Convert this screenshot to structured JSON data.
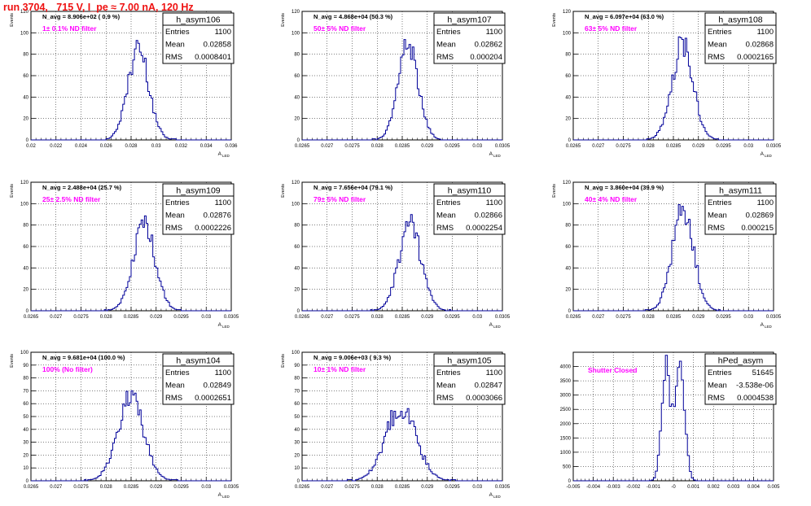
{
  "title": "run 3704,   715 V, I_pe ≈ 7.00 nA, 120 Hz",
  "colors": {
    "title": "#ee1111",
    "annotation": "#ff00ff",
    "histogram": "#000099",
    "frame": "#000000",
    "grid": "#000000"
  },
  "chart_data": [
    {
      "type": "histogram",
      "name": "h_asym106",
      "avg_label": "N_avg = 8.906e+02 ( 0.9 %)",
      "filter_label": "1± 0.1% ND filter",
      "stats": [
        [
          "Entries",
          "1100"
        ],
        [
          "Mean",
          "0.02858"
        ],
        [
          "RMS",
          "0.0008401"
        ]
      ],
      "xlabel": "A",
      "xlabel_sub": "LED",
      "ylabel": "Events",
      "xlim": [
        0.02,
        0.036
      ],
      "ylim": [
        0,
        120
      ],
      "xticks": [
        0.02,
        0.022,
        0.024,
        0.026,
        0.028,
        0.03,
        0.032,
        0.034,
        0.036
      ],
      "xtick_labels": [
        "0.02",
        "0.022",
        "0.024",
        "0.026",
        "0.028",
        "0.03",
        "0.032",
        "0.034",
        "0.036"
      ],
      "yticks": [
        0,
        20,
        40,
        60,
        80,
        100,
        120
      ],
      "ytick_labels": [
        "0",
        "20",
        "40",
        "60",
        "80",
        "100",
        "120"
      ],
      "peak_value": 88,
      "mean": 0.02858,
      "rms": 0.0008401
    },
    {
      "type": "histogram",
      "name": "h_asym107",
      "avg_label": "N_avg = 4.868e+04 (50.3 %)",
      "filter_label": "50± 5% ND filter",
      "stats": [
        [
          "Entries",
          "1100"
        ],
        [
          "Mean",
          "0.02862"
        ],
        [
          "RMS",
          "0.000204"
        ]
      ],
      "xlabel": "A",
      "xlabel_sub": "LED",
      "ylabel": "Events",
      "xlim": [
        0.0265,
        0.0305
      ],
      "ylim": [
        0,
        120
      ],
      "xticks": [
        0.0265,
        0.027,
        0.0275,
        0.028,
        0.0285,
        0.029,
        0.0295,
        0.03,
        0.0305
      ],
      "xtick_labels": [
        "0.0265",
        "0.027",
        "0.0275",
        "0.028",
        "0.0285",
        "0.029",
        "0.0295",
        "0.03",
        "0.0305"
      ],
      "yticks": [
        0,
        20,
        40,
        60,
        80,
        100,
        120
      ],
      "ytick_labels": [
        "0",
        "20",
        "40",
        "60",
        "80",
        "100",
        "120"
      ],
      "peak_value": 91,
      "mean": 0.02862,
      "rms": 0.000204
    },
    {
      "type": "histogram",
      "name": "h_asym108",
      "avg_label": "N_avg = 6.097e+04 (63.0 %)",
      "filter_label": "63± 5% ND filter",
      "stats": [
        [
          "Entries",
          "1100"
        ],
        [
          "Mean",
          "0.02868"
        ],
        [
          "RMS",
          "0.0002165"
        ]
      ],
      "xlabel": "A",
      "xlabel_sub": "LED",
      "ylabel": "Events",
      "xlim": [
        0.0265,
        0.0305
      ],
      "ylim": [
        0,
        120
      ],
      "xticks": [
        0.0265,
        0.027,
        0.0275,
        0.028,
        0.0285,
        0.029,
        0.0295,
        0.03,
        0.0305
      ],
      "xtick_labels": [
        "0.0265",
        "0.027",
        "0.0275",
        "0.028",
        "0.0285",
        "0.029",
        "0.0295",
        "0.03",
        "0.0305"
      ],
      "yticks": [
        0,
        20,
        40,
        60,
        80,
        100,
        120
      ],
      "ytick_labels": [
        "0",
        "20",
        "40",
        "60",
        "80",
        "100",
        "120"
      ],
      "peak_value": 90,
      "mean": 0.02868,
      "rms": 0.0002165
    },
    {
      "type": "histogram",
      "name": "h_asym109",
      "avg_label": "N_avg = 2.488e+04 (25.7 %)",
      "filter_label": "25± 2.5% ND filter",
      "stats": [
        [
          "Entries",
          "1100"
        ],
        [
          "Mean",
          "0.02876"
        ],
        [
          "RMS",
          "0.0002226"
        ]
      ],
      "xlabel": "A",
      "xlabel_sub": "LED",
      "ylabel": "Events",
      "xlim": [
        0.0265,
        0.0305
      ],
      "ylim": [
        0,
        120
      ],
      "xticks": [
        0.0265,
        0.027,
        0.0275,
        0.028,
        0.0285,
        0.029,
        0.0295,
        0.03,
        0.0305
      ],
      "xtick_labels": [
        "0.0265",
        "0.027",
        "0.0275",
        "0.028",
        "0.0285",
        "0.029",
        "0.0295",
        "0.03",
        "0.0305"
      ],
      "yticks": [
        0,
        20,
        40,
        60,
        80,
        100,
        120
      ],
      "ytick_labels": [
        "0",
        "20",
        "40",
        "60",
        "80",
        "100",
        "120"
      ],
      "peak_value": 82,
      "mean": 0.02876,
      "rms": 0.0002226
    },
    {
      "type": "histogram",
      "name": "h_asym110",
      "avg_label": "N_avg = 7.656e+04 (79.1 %)",
      "filter_label": "79± 5% ND filter",
      "stats": [
        [
          "Entries",
          "1100"
        ],
        [
          "Mean",
          "0.02866"
        ],
        [
          "RMS",
          "0.0002254"
        ]
      ],
      "xlabel": "A",
      "xlabel_sub": "LED",
      "ylabel": "Events",
      "xlim": [
        0.0265,
        0.0305
      ],
      "ylim": [
        0,
        120
      ],
      "xticks": [
        0.0265,
        0.027,
        0.0275,
        0.028,
        0.0285,
        0.029,
        0.0295,
        0.03,
        0.0305
      ],
      "xtick_labels": [
        "0.0265",
        "0.027",
        "0.0275",
        "0.028",
        "0.0285",
        "0.029",
        "0.0295",
        "0.03",
        "0.0305"
      ],
      "yticks": [
        0,
        20,
        40,
        60,
        80,
        100,
        120
      ],
      "ytick_labels": [
        "0",
        "20",
        "40",
        "60",
        "80",
        "100",
        "120"
      ],
      "peak_value": 81,
      "mean": 0.02866,
      "rms": 0.0002254
    },
    {
      "type": "histogram",
      "name": "h_asym111",
      "avg_label": "N_avg = 3.860e+04 (39.9 %)",
      "filter_label": "40± 4% ND filter",
      "stats": [
        [
          "Entries",
          "1100"
        ],
        [
          "Mean",
          "0.02869"
        ],
        [
          "RMS",
          "0.000215"
        ]
      ],
      "xlabel": "A",
      "xlabel_sub": "LED",
      "ylabel": "Events",
      "xlim": [
        0.0265,
        0.0305
      ],
      "ylim": [
        0,
        120
      ],
      "xticks": [
        0.0265,
        0.027,
        0.0275,
        0.028,
        0.0285,
        0.029,
        0.0295,
        0.03,
        0.0305
      ],
      "xtick_labels": [
        "0.0265",
        "0.027",
        "0.0275",
        "0.028",
        "0.0285",
        "0.029",
        "0.0295",
        "0.03",
        "0.0305"
      ],
      "yticks": [
        0,
        20,
        40,
        60,
        80,
        100,
        120
      ],
      "ytick_labels": [
        "0",
        "20",
        "40",
        "60",
        "80",
        "100",
        "120"
      ],
      "peak_value": 96,
      "mean": 0.02869,
      "rms": 0.000215
    },
    {
      "type": "histogram",
      "name": "h_asym104",
      "avg_label": "N_avg = 9.681e+04 (100.0 %)",
      "filter_label": "100% (No filter)",
      "stats": [
        [
          "Entries",
          "1100"
        ],
        [
          "Mean",
          "0.02849"
        ],
        [
          "RMS",
          "0.0002651"
        ]
      ],
      "xlabel": "A",
      "xlabel_sub": "LED",
      "ylabel": "Events",
      "xlim": [
        0.0265,
        0.0305
      ],
      "ylim": [
        0,
        100
      ],
      "xticks": [
        0.0265,
        0.027,
        0.0275,
        0.028,
        0.0285,
        0.029,
        0.0295,
        0.03,
        0.0305
      ],
      "xtick_labels": [
        "0.0265",
        "0.027",
        "0.0275",
        "0.028",
        "0.0285",
        "0.029",
        "0.0295",
        "0.03",
        "0.0305"
      ],
      "yticks": [
        0,
        10,
        20,
        30,
        40,
        50,
        60,
        70,
        80,
        90,
        100
      ],
      "ytick_labels": [
        "0",
        "10",
        "20",
        "30",
        "40",
        "50",
        "60",
        "70",
        "80",
        "90",
        "100"
      ],
      "peak_value": 66,
      "mean": 0.02849,
      "rms": 0.0002651
    },
    {
      "type": "histogram",
      "name": "h_asym105",
      "avg_label": "N_avg = 9.006e+03 ( 9.3 %)",
      "filter_label": "10± 1% ND filter",
      "stats": [
        [
          "Entries",
          "1100"
        ],
        [
          "Mean",
          "0.02847"
        ],
        [
          "RMS",
          "0.0003066"
        ]
      ],
      "xlabel": "A",
      "xlabel_sub": "LED",
      "ylabel": "Events",
      "xlim": [
        0.0265,
        0.0305
      ],
      "ylim": [
        0,
        100
      ],
      "xticks": [
        0.0265,
        0.027,
        0.0275,
        0.028,
        0.0285,
        0.029,
        0.0295,
        0.03,
        0.0305
      ],
      "xtick_labels": [
        "0.0265",
        "0.027",
        "0.0275",
        "0.028",
        "0.0285",
        "0.029",
        "0.0295",
        "0.03",
        "0.0305"
      ],
      "yticks": [
        0,
        10,
        20,
        30,
        40,
        50,
        60,
        70,
        80,
        90,
        100
      ],
      "ytick_labels": [
        "0",
        "10",
        "20",
        "30",
        "40",
        "50",
        "60",
        "70",
        "80",
        "90",
        "100"
      ],
      "peak_value": 59,
      "mean": 0.02847,
      "rms": 0.0003066
    },
    {
      "type": "histogram",
      "name": "hPed_asym",
      "avg_label": "",
      "filter_label": "Shutter Closed",
      "stats": [
        [
          "Entries",
          "51645"
        ],
        [
          "Mean",
          "-3.538e-06"
        ],
        [
          "RMS",
          "0.0004538"
        ]
      ],
      "xlabel": "",
      "xlabel_sub": "",
      "ylabel": "",
      "xlim": [
        -0.005,
        0.005
      ],
      "ylim": [
        0,
        4500
      ],
      "xticks": [
        -0.005,
        -0.004,
        -0.003,
        -0.002,
        -0.001,
        0,
        0.001,
        0.002,
        0.003,
        0.004,
        0.005
      ],
      "xtick_labels": [
        "-0.005",
        "-0.004",
        "-0.003",
        "-0.002",
        "-0.001",
        "-0",
        "0.001",
        "0.002",
        "0.003",
        "0.004",
        "0.005"
      ],
      "yticks": [
        0,
        500,
        1000,
        1500,
        2000,
        2500,
        3000,
        3500,
        4000
      ],
      "ytick_labels": [
        "0",
        "500",
        "1000",
        "1500",
        "2000",
        "2500",
        "3000",
        "3500",
        "4000"
      ],
      "peak_value": 4300,
      "mean": -3.538e-06,
      "rms": 0.0004538,
      "bimodal": true
    }
  ]
}
